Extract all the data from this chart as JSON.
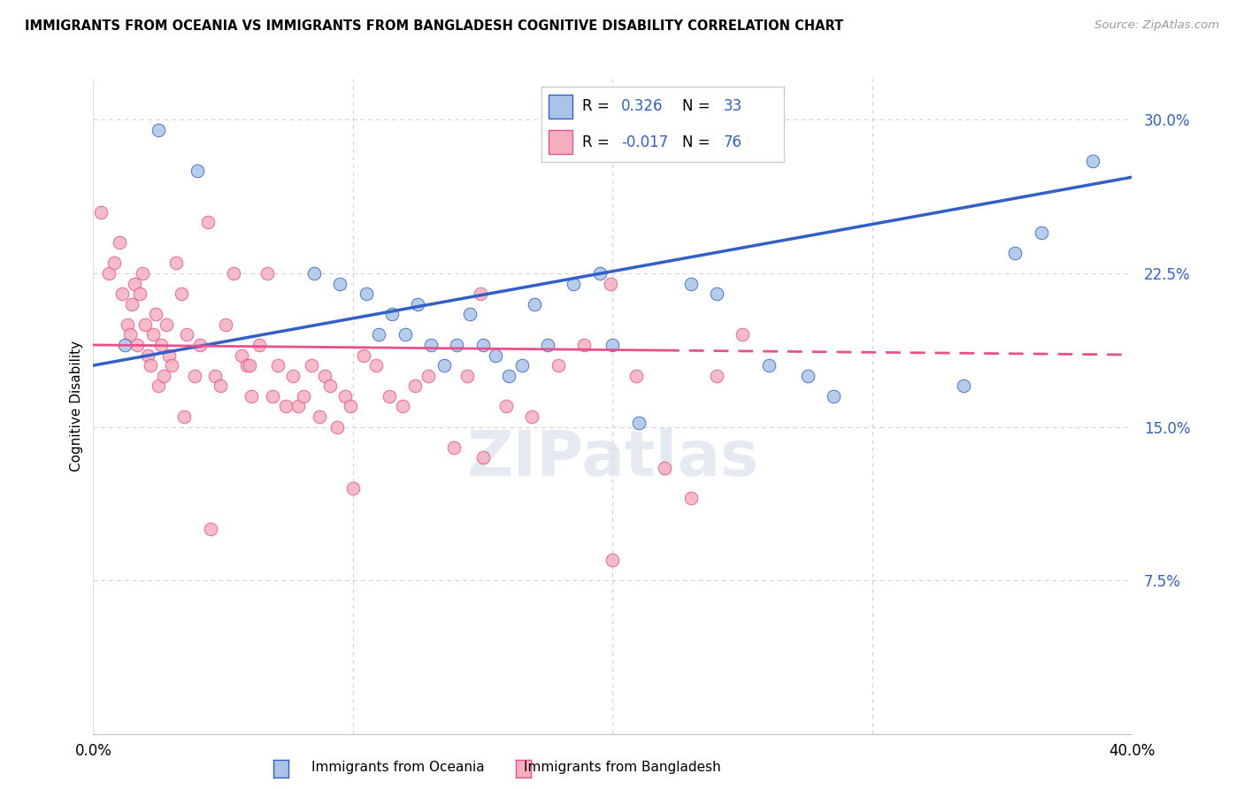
{
  "title": "IMMIGRANTS FROM OCEANIA VS IMMIGRANTS FROM BANGLADESH COGNITIVE DISABILITY CORRELATION CHART",
  "source": "Source: ZipAtlas.com",
  "ylabel": "Cognitive Disability",
  "xlim": [
    0.0,
    40.0
  ],
  "ylim": [
    0.0,
    32.0
  ],
  "yticks": [
    7.5,
    15.0,
    22.5,
    30.0
  ],
  "xticks": [
    0.0,
    10.0,
    20.0,
    30.0,
    40.0
  ],
  "r_oceania": 0.326,
  "n_oceania": 33,
  "r_bangladesh": -0.017,
  "n_bangladesh": 76,
  "color_oceania": "#aac4e8",
  "color_bangladesh": "#f5afc0",
  "line_color_oceania": "#3060c8",
  "line_color_bangladesh": "#e8508a",
  "background_color": "#ffffff",
  "grid_color": "#d0d0d0",
  "oceania_points": [
    [
      1.2,
      19.0
    ],
    [
      2.5,
      29.5
    ],
    [
      4.0,
      27.5
    ],
    [
      8.5,
      22.5
    ],
    [
      9.5,
      22.0
    ],
    [
      10.5,
      21.5
    ],
    [
      11.0,
      19.5
    ],
    [
      11.5,
      20.5
    ],
    [
      12.0,
      19.5
    ],
    [
      12.5,
      21.0
    ],
    [
      13.0,
      19.0
    ],
    [
      13.5,
      18.0
    ],
    [
      14.0,
      19.0
    ],
    [
      14.5,
      20.5
    ],
    [
      15.0,
      19.0
    ],
    [
      15.5,
      18.5
    ],
    [
      16.0,
      17.5
    ],
    [
      16.5,
      18.0
    ],
    [
      17.0,
      21.0
    ],
    [
      17.5,
      19.0
    ],
    [
      18.5,
      22.0
    ],
    [
      19.5,
      22.5
    ],
    [
      21.0,
      15.2
    ],
    [
      23.0,
      22.0
    ],
    [
      24.0,
      21.5
    ],
    [
      26.0,
      18.0
    ],
    [
      27.5,
      17.5
    ],
    [
      28.5,
      16.5
    ],
    [
      33.5,
      17.0
    ],
    [
      35.5,
      23.5
    ],
    [
      36.5,
      24.5
    ],
    [
      38.5,
      28.0
    ],
    [
      20.0,
      19.0
    ]
  ],
  "bangladesh_points": [
    [
      0.3,
      25.5
    ],
    [
      0.6,
      22.5
    ],
    [
      0.8,
      23.0
    ],
    [
      1.0,
      24.0
    ],
    [
      1.1,
      21.5
    ],
    [
      1.3,
      20.0
    ],
    [
      1.4,
      19.5
    ],
    [
      1.5,
      21.0
    ],
    [
      1.6,
      22.0
    ],
    [
      1.7,
      19.0
    ],
    [
      1.8,
      21.5
    ],
    [
      1.9,
      22.5
    ],
    [
      2.0,
      20.0
    ],
    [
      2.1,
      18.5
    ],
    [
      2.2,
      18.0
    ],
    [
      2.3,
      19.5
    ],
    [
      2.4,
      20.5
    ],
    [
      2.5,
      17.0
    ],
    [
      2.6,
      19.0
    ],
    [
      2.7,
      17.5
    ],
    [
      2.8,
      20.0
    ],
    [
      2.9,
      18.5
    ],
    [
      3.0,
      18.0
    ],
    [
      3.2,
      23.0
    ],
    [
      3.4,
      21.5
    ],
    [
      3.6,
      19.5
    ],
    [
      3.9,
      17.5
    ],
    [
      4.1,
      19.0
    ],
    [
      4.4,
      25.0
    ],
    [
      4.7,
      17.5
    ],
    [
      4.9,
      17.0
    ],
    [
      5.1,
      20.0
    ],
    [
      5.4,
      22.5
    ],
    [
      5.7,
      18.5
    ],
    [
      5.9,
      18.0
    ],
    [
      6.1,
      16.5
    ],
    [
      6.4,
      19.0
    ],
    [
      6.7,
      22.5
    ],
    [
      6.9,
      16.5
    ],
    [
      7.1,
      18.0
    ],
    [
      7.4,
      16.0
    ],
    [
      7.7,
      17.5
    ],
    [
      7.9,
      16.0
    ],
    [
      8.1,
      16.5
    ],
    [
      8.4,
      18.0
    ],
    [
      8.7,
      15.5
    ],
    [
      8.9,
      17.5
    ],
    [
      9.1,
      17.0
    ],
    [
      9.4,
      15.0
    ],
    [
      9.7,
      16.5
    ],
    [
      9.9,
      16.0
    ],
    [
      10.4,
      18.5
    ],
    [
      10.9,
      18.0
    ],
    [
      11.4,
      16.5
    ],
    [
      11.9,
      16.0
    ],
    [
      12.4,
      17.0
    ],
    [
      12.9,
      17.5
    ],
    [
      13.9,
      14.0
    ],
    [
      14.4,
      17.5
    ],
    [
      14.9,
      21.5
    ],
    [
      15.9,
      16.0
    ],
    [
      16.9,
      15.5
    ],
    [
      17.9,
      18.0
    ],
    [
      18.9,
      19.0
    ],
    [
      19.9,
      22.0
    ],
    [
      20.9,
      17.5
    ],
    [
      22.0,
      13.0
    ],
    [
      23.0,
      11.5
    ],
    [
      24.0,
      17.5
    ],
    [
      25.0,
      19.5
    ],
    [
      4.5,
      10.0
    ],
    [
      10.0,
      12.0
    ],
    [
      15.0,
      13.5
    ],
    [
      20.0,
      8.5
    ],
    [
      3.5,
      15.5
    ],
    [
      6.0,
      18.0
    ]
  ]
}
